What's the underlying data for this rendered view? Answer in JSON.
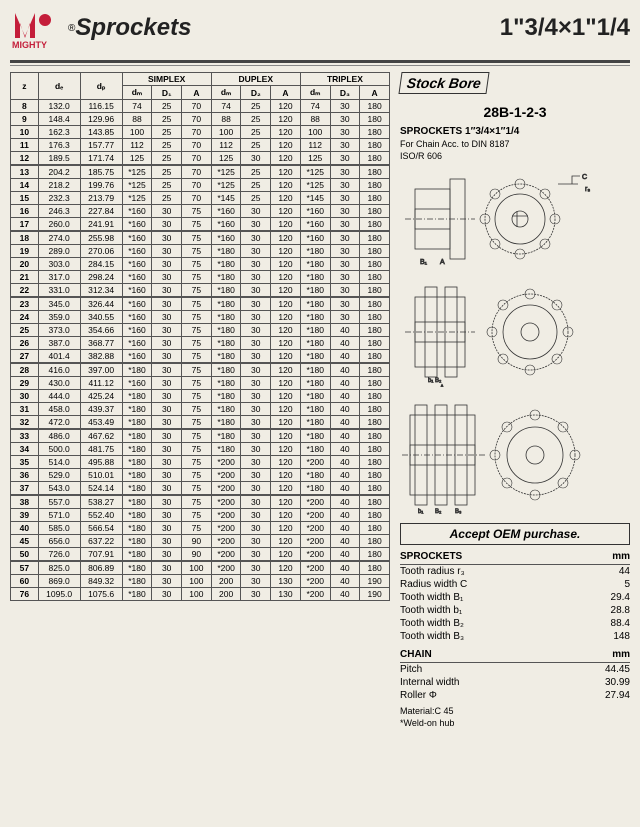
{
  "header": {
    "brand": "MIGHTY",
    "brand_color": "#c41e3a",
    "title_left": "Sprockets",
    "title_right": "1\"3/4×1\"1/4"
  },
  "right_panel": {
    "stock_bore": "Stock Bore",
    "model": "28B-1-2-3",
    "spec_title": "SPROCKETS 1″3/4×1″1/4",
    "chain_line1": "For Chain  Acc. to  DIN 8187",
    "chain_line2": "ISO/R 606",
    "oem": "Accept OEM purchase.",
    "sprockets_hdr_l": "SPROCKETS",
    "sprockets_hdr_r": "mm",
    "sprockets_rows": [
      {
        "l": "Tooth radius r₃",
        "r": "44"
      },
      {
        "l": "Radius width C",
        "r": "5"
      },
      {
        "l": "Tooth width B₁",
        "r": "29.4"
      },
      {
        "l": "Tooth width b₁",
        "r": "28.8"
      },
      {
        "l": "Tooth width B₂",
        "r": "88.4"
      },
      {
        "l": "Tooth width B₃",
        "r": "148"
      }
    ],
    "chain_hdr_l": "CHAIN",
    "chain_hdr_r": "mm",
    "chain_rows": [
      {
        "l": "Pitch",
        "r": "44.45"
      },
      {
        "l": "Internal width",
        "r": "30.99"
      },
      {
        "l": "Roller Φ",
        "r": "27.94"
      }
    ],
    "material": "Material:C 45",
    "weld": "*Weld-on hub"
  },
  "table": {
    "grp_headers": [
      "SIMPLEX",
      "DUPLEX",
      "TRIPLEX"
    ],
    "col_headers": {
      "z": "z",
      "de": "dₑ",
      "dp": "dₚ",
      "dm": "dₘ",
      "d1": "D₁",
      "d2": "D₂",
      "d3": "D₃",
      "a": "A"
    },
    "rows": [
      [
        "8",
        "132.0",
        "116.15",
        "74",
        "25",
        "70",
        "74",
        "25",
        "120",
        "74",
        "30",
        "180"
      ],
      [
        "9",
        "148.4",
        "129.96",
        "88",
        "25",
        "70",
        "88",
        "25",
        "120",
        "88",
        "30",
        "180"
      ],
      [
        "10",
        "162.3",
        "143.85",
        "100",
        "25",
        "70",
        "100",
        "25",
        "120",
        "100",
        "30",
        "180"
      ],
      [
        "11",
        "176.3",
        "157.77",
        "112",
        "25",
        "70",
        "112",
        "25",
        "120",
        "112",
        "30",
        "180"
      ],
      [
        "12",
        "189.5",
        "171.74",
        "125",
        "25",
        "70",
        "125",
        "30",
        "120",
        "125",
        "30",
        "180"
      ],
      [
        "13",
        "204.2",
        "185.75",
        "*125",
        "25",
        "70",
        "*125",
        "25",
        "120",
        "*125",
        "30",
        "180"
      ],
      [
        "14",
        "218.2",
        "199.76",
        "*125",
        "25",
        "70",
        "*125",
        "25",
        "120",
        "*125",
        "30",
        "180"
      ],
      [
        "15",
        "232.3",
        "213.79",
        "*125",
        "25",
        "70",
        "*145",
        "25",
        "120",
        "*145",
        "30",
        "180"
      ],
      [
        "16",
        "246.3",
        "227.84",
        "*160",
        "30",
        "75",
        "*160",
        "30",
        "120",
        "*160",
        "30",
        "180"
      ],
      [
        "17",
        "260.0",
        "241.91",
        "*160",
        "30",
        "75",
        "*160",
        "30",
        "120",
        "*160",
        "30",
        "180"
      ],
      [
        "18",
        "274.0",
        "255.98",
        "*160",
        "30",
        "75",
        "*160",
        "30",
        "120",
        "*160",
        "30",
        "180"
      ],
      [
        "19",
        "289.0",
        "270.06",
        "*160",
        "30",
        "75",
        "*180",
        "30",
        "120",
        "*180",
        "30",
        "180"
      ],
      [
        "20",
        "303.0",
        "284.15",
        "*160",
        "30",
        "75",
        "*180",
        "30",
        "120",
        "*180",
        "30",
        "180"
      ],
      [
        "21",
        "317.0",
        "298.24",
        "*160",
        "30",
        "75",
        "*180",
        "30",
        "120",
        "*180",
        "30",
        "180"
      ],
      [
        "22",
        "331.0",
        "312.34",
        "*160",
        "30",
        "75",
        "*180",
        "30",
        "120",
        "*180",
        "30",
        "180"
      ],
      [
        "23",
        "345.0",
        "326.44",
        "*160",
        "30",
        "75",
        "*180",
        "30",
        "120",
        "*180",
        "30",
        "180"
      ],
      [
        "24",
        "359.0",
        "340.55",
        "*160",
        "30",
        "75",
        "*180",
        "30",
        "120",
        "*180",
        "30",
        "180"
      ],
      [
        "25",
        "373.0",
        "354.66",
        "*160",
        "30",
        "75",
        "*180",
        "30",
        "120",
        "*180",
        "40",
        "180"
      ],
      [
        "26",
        "387.0",
        "368.77",
        "*160",
        "30",
        "75",
        "*180",
        "30",
        "120",
        "*180",
        "40",
        "180"
      ],
      [
        "27",
        "401.4",
        "382.88",
        "*160",
        "30",
        "75",
        "*180",
        "30",
        "120",
        "*180",
        "40",
        "180"
      ],
      [
        "28",
        "416.0",
        "397.00",
        "*180",
        "30",
        "75",
        "*180",
        "30",
        "120",
        "*180",
        "40",
        "180"
      ],
      [
        "29",
        "430.0",
        "411.12",
        "*160",
        "30",
        "75",
        "*180",
        "30",
        "120",
        "*180",
        "40",
        "180"
      ],
      [
        "30",
        "444.0",
        "425.24",
        "*180",
        "30",
        "75",
        "*180",
        "30",
        "120",
        "*180",
        "40",
        "180"
      ],
      [
        "31",
        "458.0",
        "439.37",
        "*180",
        "30",
        "75",
        "*180",
        "30",
        "120",
        "*180",
        "40",
        "180"
      ],
      [
        "32",
        "472.0",
        "453.49",
        "*180",
        "30",
        "75",
        "*180",
        "30",
        "120",
        "*180",
        "40",
        "180"
      ],
      [
        "33",
        "486.0",
        "467.62",
        "*180",
        "30",
        "75",
        "*180",
        "30",
        "120",
        "*180",
        "40",
        "180"
      ],
      [
        "34",
        "500.0",
        "481.75",
        "*180",
        "30",
        "75",
        "*180",
        "30",
        "120",
        "*180",
        "40",
        "180"
      ],
      [
        "35",
        "514.0",
        "495.88",
        "*180",
        "30",
        "75",
        "*200",
        "30",
        "120",
        "*200",
        "40",
        "180"
      ],
      [
        "36",
        "529.0",
        "510.01",
        "*180",
        "30",
        "75",
        "*200",
        "30",
        "120",
        "*180",
        "40",
        "180"
      ],
      [
        "37",
        "543.0",
        "524.14",
        "*180",
        "30",
        "75",
        "*200",
        "30",
        "120",
        "*180",
        "40",
        "180"
      ],
      [
        "38",
        "557.0",
        "538.27",
        "*180",
        "30",
        "75",
        "*200",
        "30",
        "120",
        "*200",
        "40",
        "180"
      ],
      [
        "39",
        "571.0",
        "552.40",
        "*180",
        "30",
        "75",
        "*200",
        "30",
        "120",
        "*200",
        "40",
        "180"
      ],
      [
        "40",
        "585.0",
        "566.54",
        "*180",
        "30",
        "75",
        "*200",
        "30",
        "120",
        "*200",
        "40",
        "180"
      ],
      [
        "45",
        "656.0",
        "637.22",
        "*180",
        "30",
        "90",
        "*200",
        "30",
        "120",
        "*200",
        "40",
        "180"
      ],
      [
        "50",
        "726.0",
        "707.91",
        "*180",
        "30",
        "90",
        "*200",
        "30",
        "120",
        "*200",
        "40",
        "180"
      ],
      [
        "57",
        "825.0",
        "806.89",
        "*180",
        "30",
        "100",
        "*200",
        "30",
        "120",
        "*200",
        "40",
        "180"
      ],
      [
        "60",
        "869.0",
        "849.32",
        "*180",
        "30",
        "100",
        "200",
        "30",
        "130",
        "*200",
        "40",
        "190"
      ],
      [
        "76",
        "1095.0",
        "1075.6",
        "*180",
        "30",
        "100",
        "200",
        "30",
        "130",
        "*200",
        "40",
        "190"
      ]
    ],
    "breaks_after": [
      4,
      9,
      14,
      19,
      24,
      29,
      34,
      39
    ]
  }
}
